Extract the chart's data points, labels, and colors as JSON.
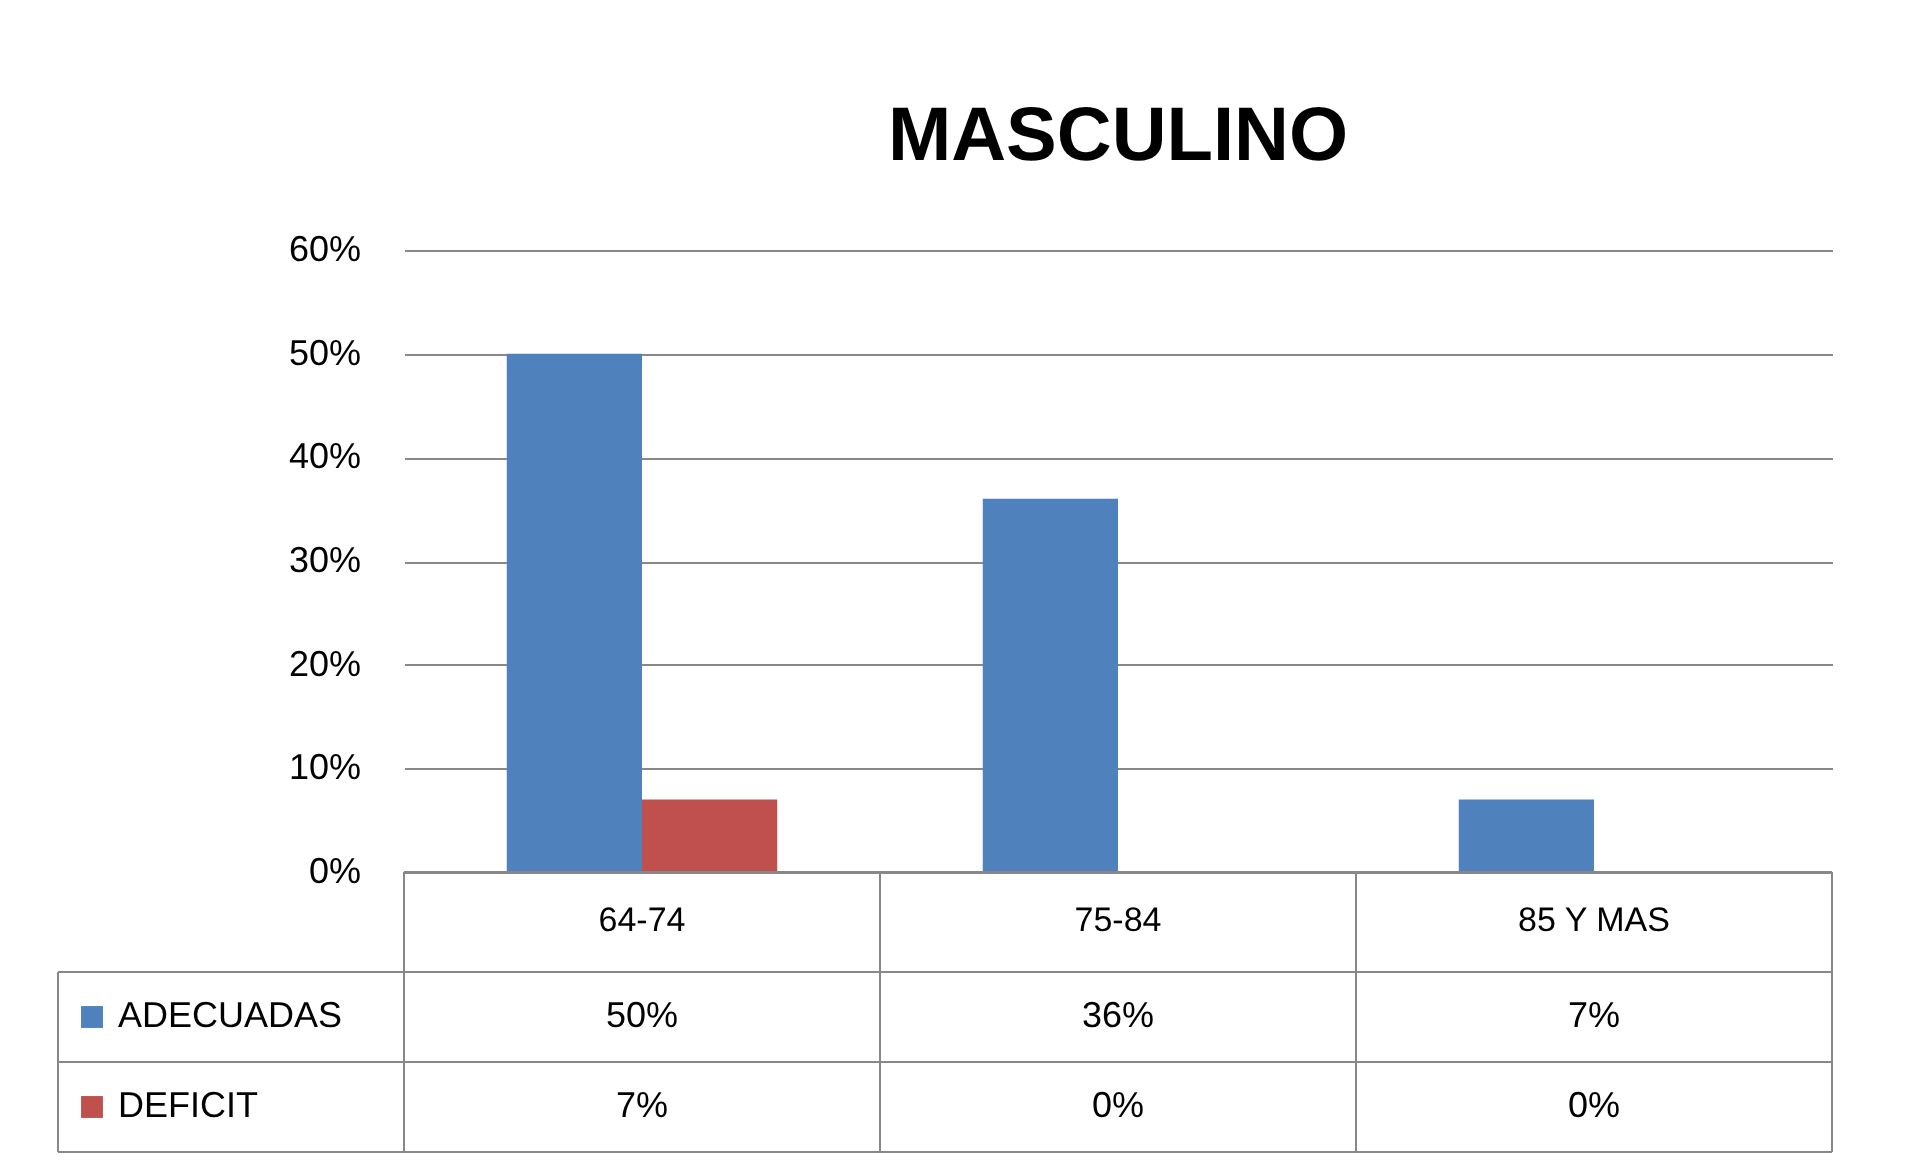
{
  "chart_data": {
    "type": "bar",
    "title": "MASCULINO",
    "categories": [
      "64-74",
      "75-84",
      "85 Y MAS"
    ],
    "series": [
      {
        "name": "ADECUADAS",
        "color": "#4f81bd",
        "values": [
          50,
          36,
          7
        ],
        "value_labels": [
          "50%",
          "36%",
          "7%"
        ]
      },
      {
        "name": "DEFICIT",
        "color": "#c0504d",
        "values": [
          7,
          0,
          0
        ],
        "value_labels": [
          "7%",
          "0%",
          "0%"
        ]
      }
    ],
    "ylim": [
      0,
      60
    ],
    "yticks": [
      {
        "value": 0,
        "label": "0%"
      },
      {
        "value": 10,
        "label": "10%"
      },
      {
        "value": 20,
        "label": "20%"
      },
      {
        "value": 30,
        "label": "30%"
      },
      {
        "value": 40,
        "label": "40%"
      },
      {
        "value": 50,
        "label": "50%"
      },
      {
        "value": 60,
        "label": "60%"
      }
    ],
    "grid": "y",
    "legend": "bottom left"
  }
}
